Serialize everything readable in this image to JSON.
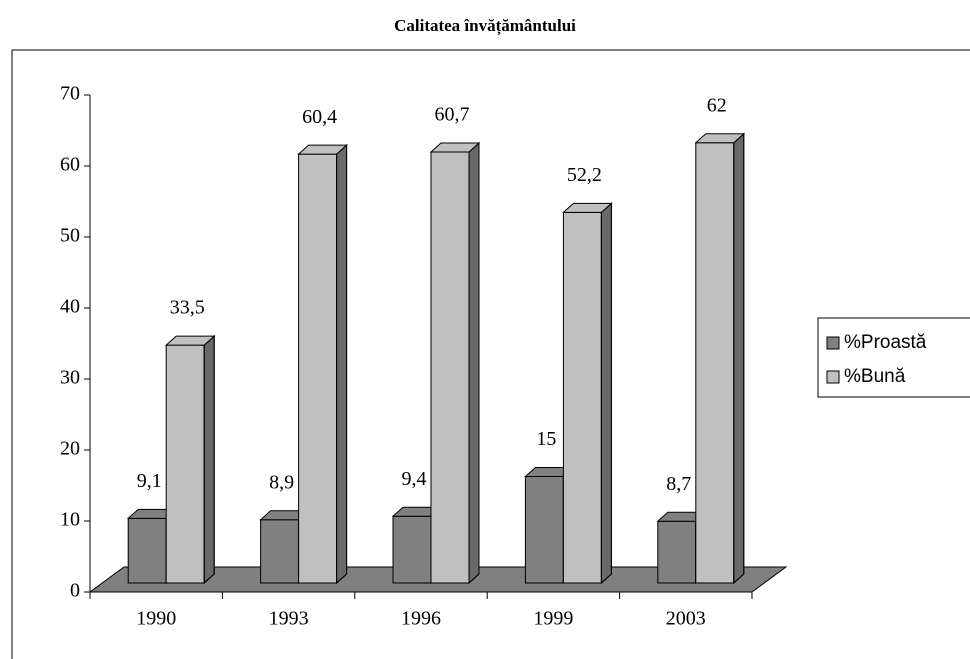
{
  "chart_data": {
    "type": "bar3d",
    "title": "Calitatea învățământului",
    "categories": [
      "1990",
      "1993",
      "1996",
      "1999",
      "2003"
    ],
    "series": [
      {
        "name": "%Proastă",
        "color": "#808080",
        "values": [
          9.1,
          8.9,
          9.4,
          15,
          8.7
        ],
        "value_labels": [
          "9,1",
          "8,9",
          "9,4",
          "15",
          "8,7"
        ]
      },
      {
        "name": "%Bună",
        "color": "#c0c0c0",
        "values": [
          33.5,
          60.4,
          60.7,
          52.2,
          62
        ],
        "value_labels": [
          "33,5",
          "60,4",
          "60,7",
          "52,2",
          "62"
        ]
      }
    ],
    "ylim": [
      0,
      70
    ],
    "yticks": [
      0,
      10,
      20,
      30,
      40,
      50,
      60,
      70
    ],
    "grid": false,
    "legend": "right"
  }
}
